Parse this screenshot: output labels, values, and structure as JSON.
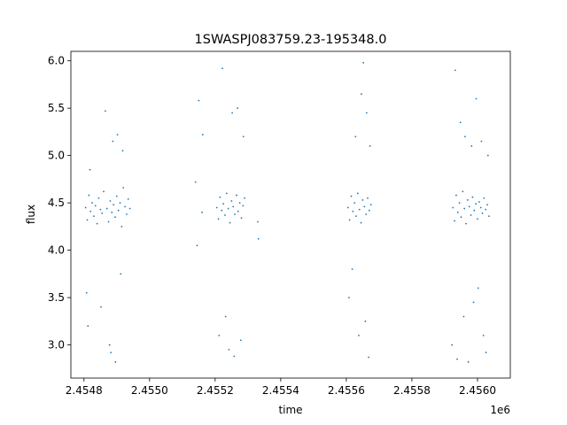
{
  "chart_data": {
    "type": "scatter",
    "title": "1SWASPJ083759.23-195348.0",
    "xlabel": "time",
    "ylabel": "flux",
    "x_offset_label": "1e6",
    "xlim": [
      2454760,
      2456100
    ],
    "ylim": [
      2.65,
      6.1
    ],
    "x_ticks": [
      2454800,
      2455000,
      2455200,
      2455400,
      2455600,
      2455800,
      2456000
    ],
    "x_tick_labels": [
      "2.4548",
      "2.4550",
      "2.4552",
      "2.4554",
      "2.4556",
      "2.4558",
      "2.4560"
    ],
    "y_ticks": [
      3.0,
      3.5,
      4.0,
      4.5,
      5.0,
      5.5,
      6.0
    ],
    "y_tick_labels": [
      "3.0",
      "3.5",
      "4.0",
      "4.5",
      "5.0",
      "5.5",
      "6.0"
    ],
    "grid": false,
    "point_color": "#1f77b4",
    "series": [
      {
        "values": [
          {
            "x": 2454805,
            "y": 4.45
          },
          {
            "x": 2454810,
            "y": 4.32
          },
          {
            "x": 2454815,
            "y": 4.58
          },
          {
            "x": 2454820,
            "y": 4.41
          },
          {
            "x": 2454825,
            "y": 4.5
          },
          {
            "x": 2454830,
            "y": 4.36
          },
          {
            "x": 2454835,
            "y": 4.47
          },
          {
            "x": 2454840,
            "y": 4.28
          },
          {
            "x": 2454845,
            "y": 4.55
          },
          {
            "x": 2454850,
            "y": 4.43
          },
          {
            "x": 2454855,
            "y": 4.39
          },
          {
            "x": 2454860,
            "y": 4.62
          },
          {
            "x": 2454870,
            "y": 4.44
          },
          {
            "x": 2454875,
            "y": 4.3
          },
          {
            "x": 2454880,
            "y": 4.52
          },
          {
            "x": 2454885,
            "y": 4.4
          },
          {
            "x": 2454890,
            "y": 4.48
          },
          {
            "x": 2454895,
            "y": 4.35
          },
          {
            "x": 2454900,
            "y": 4.57
          },
          {
            "x": 2454905,
            "y": 4.42
          },
          {
            "x": 2454910,
            "y": 4.5
          },
          {
            "x": 2454915,
            "y": 4.25
          },
          {
            "x": 2454920,
            "y": 4.66
          },
          {
            "x": 2454925,
            "y": 4.46
          },
          {
            "x": 2454930,
            "y": 4.38
          },
          {
            "x": 2454935,
            "y": 4.54
          },
          {
            "x": 2454940,
            "y": 4.44
          },
          {
            "x": 2454808,
            "y": 3.55
          },
          {
            "x": 2454812,
            "y": 3.2
          },
          {
            "x": 2454818,
            "y": 4.85
          },
          {
            "x": 2454852,
            "y": 3.4
          },
          {
            "x": 2454865,
            "y": 5.47
          },
          {
            "x": 2454878,
            "y": 3.0
          },
          {
            "x": 2454882,
            "y": 2.92
          },
          {
            "x": 2454888,
            "y": 5.15
          },
          {
            "x": 2454896,
            "y": 2.82
          },
          {
            "x": 2454902,
            "y": 5.22
          },
          {
            "x": 2454912,
            "y": 3.75
          },
          {
            "x": 2454918,
            "y": 5.05
          },
          {
            "x": 2455140,
            "y": 4.72
          },
          {
            "x": 2455145,
            "y": 4.05
          },
          {
            "x": 2455150,
            "y": 5.58
          },
          {
            "x": 2455160,
            "y": 4.4
          },
          {
            "x": 2455162,
            "y": 5.22
          },
          {
            "x": 2455205,
            "y": 4.45
          },
          {
            "x": 2455210,
            "y": 4.33
          },
          {
            "x": 2455215,
            "y": 4.56
          },
          {
            "x": 2455220,
            "y": 4.42
          },
          {
            "x": 2455225,
            "y": 4.49
          },
          {
            "x": 2455230,
            "y": 4.37
          },
          {
            "x": 2455235,
            "y": 4.6
          },
          {
            "x": 2455240,
            "y": 4.44
          },
          {
            "x": 2455245,
            "y": 4.29
          },
          {
            "x": 2455250,
            "y": 4.52
          },
          {
            "x": 2455255,
            "y": 4.46
          },
          {
            "x": 2455260,
            "y": 4.38
          },
          {
            "x": 2455265,
            "y": 4.58
          },
          {
            "x": 2455270,
            "y": 4.41
          },
          {
            "x": 2455275,
            "y": 4.5
          },
          {
            "x": 2455280,
            "y": 4.34
          },
          {
            "x": 2455285,
            "y": 4.47
          },
          {
            "x": 2455290,
            "y": 4.55
          },
          {
            "x": 2455212,
            "y": 3.1
          },
          {
            "x": 2455222,
            "y": 5.92
          },
          {
            "x": 2455232,
            "y": 3.3
          },
          {
            "x": 2455242,
            "y": 2.95
          },
          {
            "x": 2455252,
            "y": 5.45
          },
          {
            "x": 2455258,
            "y": 2.88
          },
          {
            "x": 2455268,
            "y": 5.5
          },
          {
            "x": 2455278,
            "y": 3.05
          },
          {
            "x": 2455286,
            "y": 5.2
          },
          {
            "x": 2455330,
            "y": 4.3
          },
          {
            "x": 2455332,
            "y": 4.12
          },
          {
            "x": 2455605,
            "y": 4.45
          },
          {
            "x": 2455610,
            "y": 4.32
          },
          {
            "x": 2455615,
            "y": 4.57
          },
          {
            "x": 2455620,
            "y": 4.41
          },
          {
            "x": 2455625,
            "y": 4.5
          },
          {
            "x": 2455630,
            "y": 4.36
          },
          {
            "x": 2455635,
            "y": 4.6
          },
          {
            "x": 2455640,
            "y": 4.43
          },
          {
            "x": 2455645,
            "y": 4.29
          },
          {
            "x": 2455650,
            "y": 4.53
          },
          {
            "x": 2455655,
            "y": 4.46
          },
          {
            "x": 2455660,
            "y": 4.38
          },
          {
            "x": 2455665,
            "y": 4.55
          },
          {
            "x": 2455670,
            "y": 4.42
          },
          {
            "x": 2455675,
            "y": 4.48
          },
          {
            "x": 2455608,
            "y": 3.5
          },
          {
            "x": 2455618,
            "y": 3.8
          },
          {
            "x": 2455628,
            "y": 5.2
          },
          {
            "x": 2455638,
            "y": 3.1
          },
          {
            "x": 2455646,
            "y": 5.65
          },
          {
            "x": 2455652,
            "y": 5.98
          },
          {
            "x": 2455658,
            "y": 3.25
          },
          {
            "x": 2455662,
            "y": 5.45
          },
          {
            "x": 2455668,
            "y": 2.87
          },
          {
            "x": 2455672,
            "y": 5.1
          },
          {
            "x": 2455925,
            "y": 4.45
          },
          {
            "x": 2455930,
            "y": 4.31
          },
          {
            "x": 2455935,
            "y": 4.58
          },
          {
            "x": 2455940,
            "y": 4.4
          },
          {
            "x": 2455945,
            "y": 4.5
          },
          {
            "x": 2455950,
            "y": 4.35
          },
          {
            "x": 2455955,
            "y": 4.62
          },
          {
            "x": 2455960,
            "y": 4.44
          },
          {
            "x": 2455965,
            "y": 4.28
          },
          {
            "x": 2455970,
            "y": 4.53
          },
          {
            "x": 2455975,
            "y": 4.46
          },
          {
            "x": 2455980,
            "y": 4.37
          },
          {
            "x": 2455985,
            "y": 4.56
          },
          {
            "x": 2455990,
            "y": 4.42
          },
          {
            "x": 2455995,
            "y": 4.49
          },
          {
            "x": 2456000,
            "y": 4.33
          },
          {
            "x": 2456005,
            "y": 4.51
          },
          {
            "x": 2456010,
            "y": 4.45
          },
          {
            "x": 2456015,
            "y": 4.39
          },
          {
            "x": 2456020,
            "y": 4.55
          },
          {
            "x": 2456025,
            "y": 4.43
          },
          {
            "x": 2456030,
            "y": 4.48
          },
          {
            "x": 2456035,
            "y": 4.36
          },
          {
            "x": 2455922,
            "y": 3.0
          },
          {
            "x": 2455932,
            "y": 5.9
          },
          {
            "x": 2455938,
            "y": 2.85
          },
          {
            "x": 2455948,
            "y": 5.35
          },
          {
            "x": 2455958,
            "y": 3.3
          },
          {
            "x": 2455962,
            "y": 5.2
          },
          {
            "x": 2455972,
            "y": 2.82
          },
          {
            "x": 2455982,
            "y": 5.1
          },
          {
            "x": 2455988,
            "y": 3.45
          },
          {
            "x": 2455996,
            "y": 5.6
          },
          {
            "x": 2456002,
            "y": 3.6
          },
          {
            "x": 2456012,
            "y": 5.15
          },
          {
            "x": 2456018,
            "y": 3.1
          },
          {
            "x": 2456026,
            "y": 2.92
          },
          {
            "x": 2456032,
            "y": 5.0
          }
        ]
      }
    ]
  }
}
